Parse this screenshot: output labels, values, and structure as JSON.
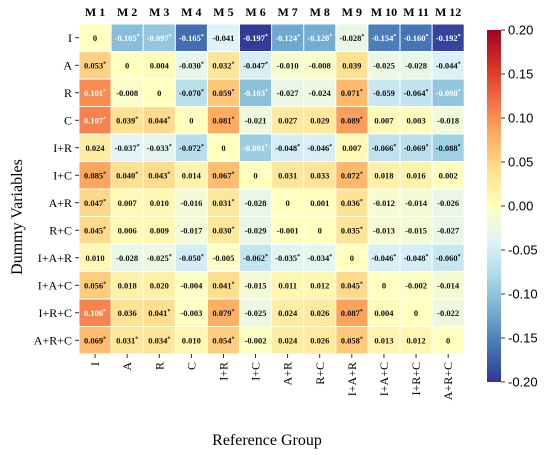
{
  "chart_data": {
    "type": "heatmap",
    "title": "",
    "xlabel": "Reference Group",
    "ylabel": "Dummy Variables",
    "column_headers": [
      "M 1",
      "M 2",
      "M 3",
      "M 4",
      "M 5",
      "M 6",
      "M 7",
      "M 8",
      "M 9",
      "M 10",
      "M 11",
      "M 12"
    ],
    "x_categories": [
      "I",
      "A",
      "R",
      "C",
      "I+R",
      "I+C",
      "A+R",
      "R+C",
      "I+A+R",
      "I+A+C",
      "I+R+C",
      "A+R+C"
    ],
    "y_categories": [
      "I",
      "A",
      "R",
      "C",
      "I+R",
      "I+C",
      "A+R",
      "R+C",
      "I+A+R",
      "I+A+C",
      "I+R+C",
      "A+R+C"
    ],
    "values": [
      [
        0,
        -0.105,
        -0.097,
        -0.165,
        -0.041,
        -0.197,
        -0.124,
        -0.12,
        -0.028,
        -0.154,
        -0.16,
        -0.192
      ],
      [
        0.053,
        0,
        0.004,
        -0.03,
        0.032,
        -0.047,
        -0.01,
        -0.008,
        0.039,
        -0.025,
        -0.028,
        -0.044
      ],
      [
        0.101,
        -0.008,
        0,
        -0.07,
        0.059,
        -0.103,
        -0.027,
        -0.024,
        0.071,
        -0.059,
        -0.064,
        -0.098
      ],
      [
        0.107,
        0.039,
        0.044,
        0,
        0.081,
        -0.021,
        0.027,
        0.029,
        0.089,
        0.007,
        0.003,
        -0.018
      ],
      [
        0.024,
        -0.037,
        -0.033,
        -0.072,
        0,
        -0.091,
        -0.048,
        -0.046,
        0.007,
        -0.066,
        -0.069,
        -0.088
      ],
      [
        0.085,
        0.04,
        0.043,
        0.014,
        0.067,
        0,
        0.031,
        0.033,
        0.072,
        0.018,
        0.016,
        0.002
      ],
      [
        0.047,
        0.007,
        0.01,
        -0.016,
        0.031,
        -0.028,
        0,
        0.001,
        0.036,
        -0.012,
        -0.014,
        -0.026
      ],
      [
        0.045,
        0.006,
        0.009,
        -0.017,
        0.03,
        -0.029,
        -0.001,
        0,
        0.035,
        -0.013,
        -0.015,
        -0.027
      ],
      [
        0.01,
        -0.028,
        -0.025,
        -0.05,
        -0.005,
        -0.062,
        -0.035,
        -0.034,
        0,
        -0.046,
        -0.048,
        -0.06
      ],
      [
        0.056,
        0.018,
        0.02,
        -0.004,
        0.041,
        -0.015,
        0.011,
        0.012,
        0.045,
        0,
        -0.002,
        -0.014
      ],
      [
        0.106,
        0.036,
        0.041,
        -0.003,
        0.079,
        -0.025,
        0.024,
        0.026,
        0.087,
        0.004,
        0,
        -0.022
      ],
      [
        0.069,
        0.031,
        0.034,
        0.01,
        0.054,
        -0.002,
        0.024,
        0.026,
        0.058,
        0.013,
        0.012,
        0
      ]
    ],
    "significant": [
      [
        0,
        1,
        1,
        1,
        0,
        1,
        1,
        1,
        1,
        1,
        1,
        1
      ],
      [
        1,
        0,
        0,
        1,
        1,
        1,
        0,
        0,
        0,
        0,
        0,
        1
      ],
      [
        1,
        0,
        0,
        1,
        1,
        1,
        0,
        0,
        1,
        0,
        1,
        1
      ],
      [
        1,
        1,
        1,
        0,
        1,
        0,
        0,
        0,
        1,
        0,
        0,
        0
      ],
      [
        0,
        1,
        1,
        1,
        0,
        1,
        1,
        1,
        0,
        1,
        1,
        1
      ],
      [
        1,
        1,
        1,
        0,
        1,
        0,
        0,
        0,
        1,
        0,
        0,
        0
      ],
      [
        1,
        0,
        0,
        0,
        1,
        0,
        0,
        0,
        1,
        0,
        0,
        0
      ],
      [
        1,
        0,
        0,
        0,
        1,
        0,
        0,
        0,
        1,
        0,
        0,
        0
      ],
      [
        0,
        0,
        1,
        1,
        0,
        1,
        1,
        1,
        0,
        1,
        1,
        1
      ],
      [
        1,
        0,
        0,
        0,
        1,
        0,
        0,
        0,
        1,
        0,
        0,
        0
      ],
      [
        1,
        0,
        1,
        0,
        1,
        0,
        0,
        0,
        1,
        0,
        0,
        0
      ],
      [
        1,
        1,
        1,
        0,
        1,
        0,
        0,
        0,
        1,
        0,
        0,
        0
      ]
    ],
    "colorbar": {
      "min": -0.2,
      "max": 0.2,
      "ticks": [
        "0.20",
        "0.15",
        "0.10",
        "0.05",
        "0.00",
        "-0.05",
        "-0.10",
        "-0.15",
        "-0.20"
      ],
      "colormap": "RdYlBu_r"
    },
    "grid": true,
    "legend": "colorbar-right"
  }
}
